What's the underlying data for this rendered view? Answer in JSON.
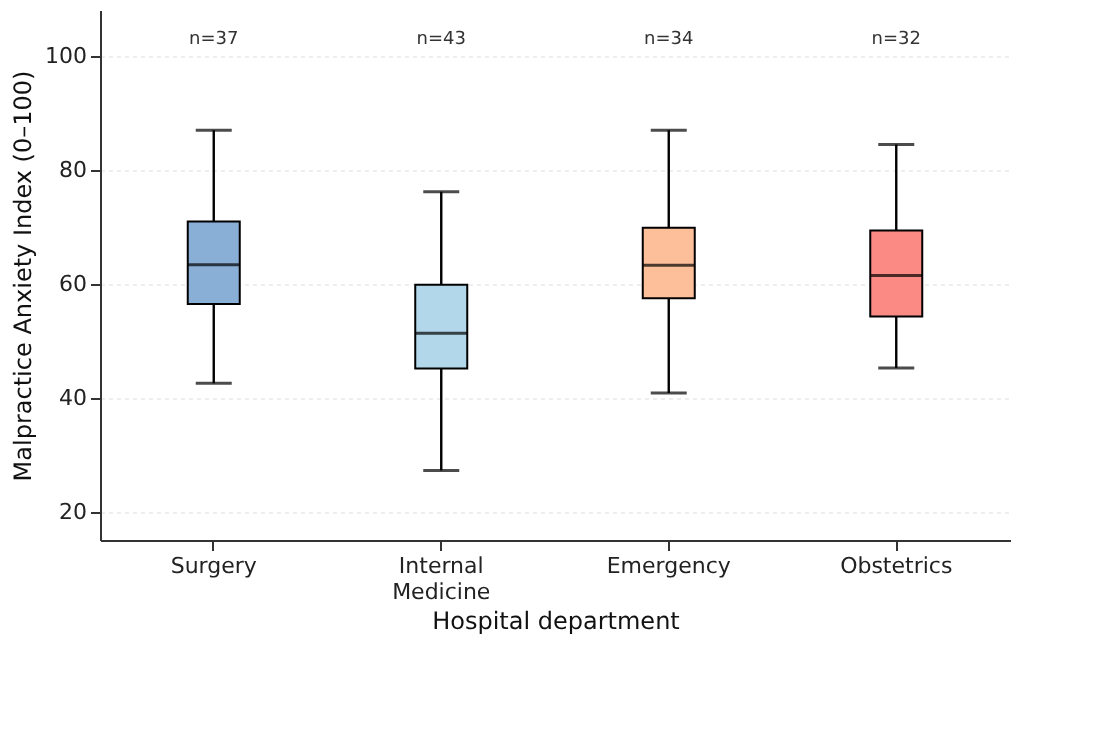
{
  "chart_data": {
    "type": "box",
    "xlabel": "Hospital department",
    "ylabel": "Malpractice Anxiety Index (0–100)",
    "categories": [
      "Surgery",
      "Internal Medicine",
      "Emergency",
      "Obstetrics"
    ],
    "colors": [
      "#8aafd6",
      "#b3d7ea",
      "#fdbf9a",
      "#fb8a84"
    ],
    "boxes": [
      {
        "low": 42.5,
        "q1": 56.4,
        "median": 63.3,
        "q3": 70.9,
        "high": 86.9
      },
      {
        "low": 27.2,
        "q1": 45.1,
        "median": 51.3,
        "q3": 59.8,
        "high": 76.1
      },
      {
        "low": 40.8,
        "q1": 57.4,
        "median": 63.2,
        "q3": 69.8,
        "high": 86.9
      },
      {
        "low": 45.2,
        "q1": 54.2,
        "median": 61.4,
        "q3": 69.3,
        "high": 84.4
      }
    ],
    "annotations": [
      "n=37",
      "n=43",
      "n=34",
      "n=32"
    ],
    "ylim": [
      15,
      108
    ],
    "yticks": [
      20,
      40,
      60,
      80,
      100
    ],
    "grid": "y"
  }
}
